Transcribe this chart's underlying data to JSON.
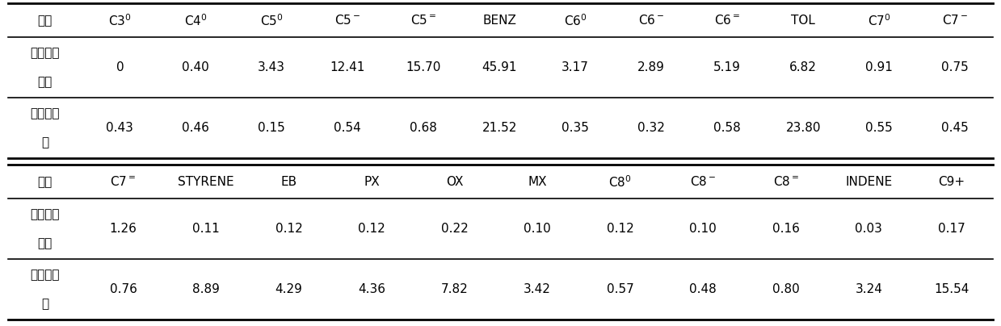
{
  "header1_display": [
    "组分",
    "C3$^0$",
    "C4$^0$",
    "C5$^0$",
    "C5$^-$",
    "C5$^=$",
    "BENZ",
    "C6$^0$",
    "C6$^-$",
    "C6$^=$",
    "TOL",
    "C7$^0$",
    "C7$^-$"
  ],
  "header2_display": [
    "组分",
    "C7$^=$",
    "STYRENE",
    "EB",
    "PX",
    "OX",
    "MX",
    "C8$^0$",
    "C8$^-$",
    "C8$^=$",
    "INDENE",
    "C9+"
  ],
  "row1_label_line1": "脱丁烷塔",
  "row1_label_line2": "底油",
  "row1_data": [
    "0",
    "0.40",
    "3.43",
    "12.41",
    "15.70",
    "45.91",
    "3.17",
    "2.89",
    "5.19",
    "6.82",
    "0.91",
    "0.75"
  ],
  "row2_label_line1": "急冷水塔",
  "row2_label_line2": "油",
  "row2_data": [
    "0.43",
    "0.46",
    "0.15",
    "0.54",
    "0.68",
    "21.52",
    "0.35",
    "0.32",
    "0.58",
    "23.80",
    "0.55",
    "0.45"
  ],
  "row3_label_line1": "脱丁烷塔",
  "row3_label_line2": "底油",
  "row3_data": [
    "1.26",
    "0.11",
    "0.12",
    "0.12",
    "0.22",
    "0.10",
    "0.12",
    "0.10",
    "0.16",
    "0.03",
    "0.17"
  ],
  "row4_label_line1": "急冷水塔",
  "row4_label_line2": "油",
  "row4_data": [
    "0.76",
    "8.89",
    "4.29",
    "4.36",
    "7.82",
    "3.42",
    "0.57",
    "0.48",
    "0.80",
    "3.24",
    "15.54"
  ],
  "bg_color": "#ffffff",
  "text_color": "#000000",
  "line_color": "#000000",
  "header_sup_map": {
    "C3^0": "C3$^{0}$",
    "C4^0": "C4$^{0}$"
  }
}
